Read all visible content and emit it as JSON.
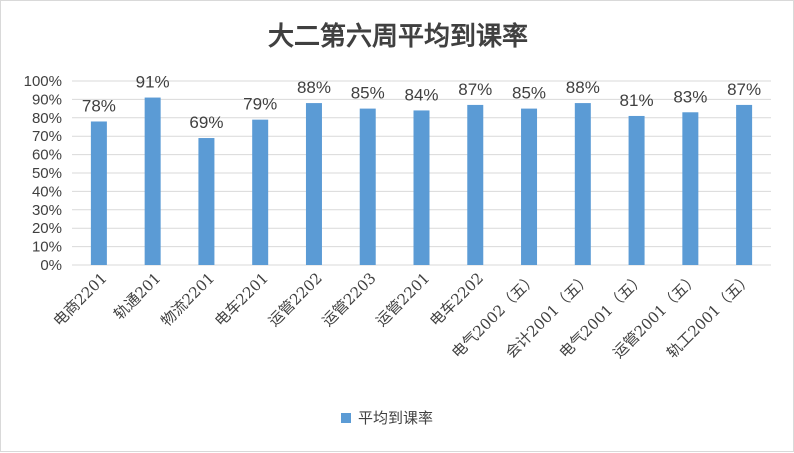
{
  "chart_data": {
    "type": "bar",
    "title": "大二第六周平均到课率",
    "categories": [
      "电商2201",
      "轨通201",
      "物流2201",
      "电车2201",
      "运管2202",
      "运管2203",
      "运管2201",
      "电车2202",
      "电气2002（五）",
      "会计2001（五）",
      "电气2001（五）",
      "运管2001（五）",
      "轨工2001（五）"
    ],
    "series": [
      {
        "name": "平均到课率",
        "values": [
          78,
          91,
          69,
          79,
          88,
          85,
          84,
          87,
          85,
          88,
          81,
          83,
          87
        ],
        "labels": [
          "78%",
          "91%",
          "69%",
          "79%",
          "88%",
          "85%",
          "84%",
          "87%",
          "85%",
          "88%",
          "81%",
          "83%",
          "87%"
        ],
        "color": "#5b9bd5"
      }
    ],
    "ylim": [
      0,
      100
    ],
    "yticks": [
      "0%",
      "10%",
      "20%",
      "30%",
      "40%",
      "50%",
      "60%",
      "70%",
      "80%",
      "90%",
      "100%"
    ],
    "grid": true,
    "legend": "bottom",
    "gridColor": "#d9d9d9",
    "textColor": "#404040"
  }
}
